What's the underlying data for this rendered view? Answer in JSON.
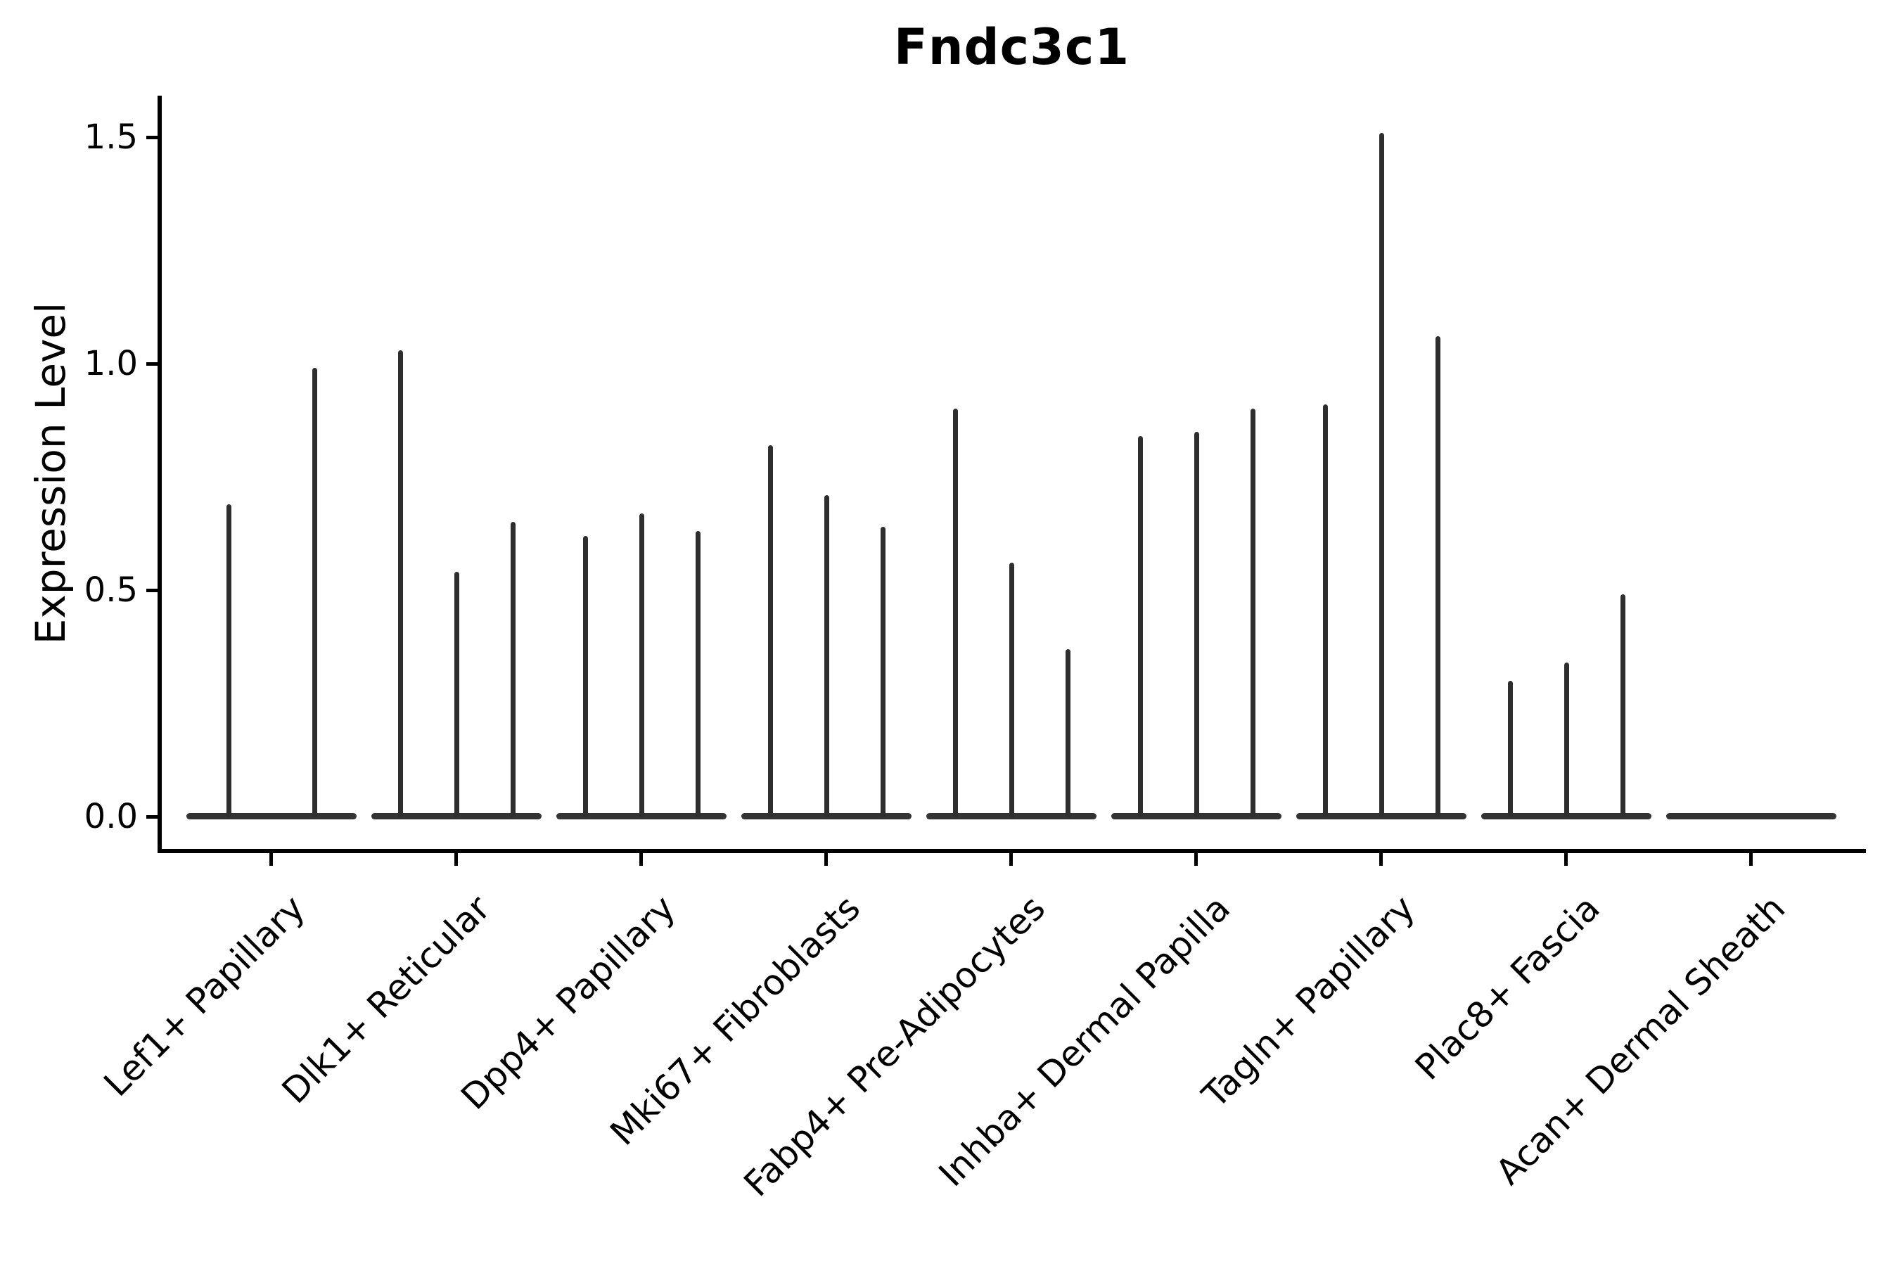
{
  "chart_data": {
    "type": "violin",
    "title": "Fndc3c1",
    "ylabel": "Expression Level",
    "xlabel": "",
    "grid": false,
    "legend": "none",
    "ylim": [
      -0.08,
      1.59
    ],
    "ytick_values": [
      0.0,
      0.5,
      1.0,
      1.5
    ],
    "ytick_labels": [
      "0.0",
      "0.5",
      "1.0",
      "1.5"
    ],
    "categories": [
      "Lef1+ Papillary",
      "Dlk1+ Reticular",
      "Dpp4+ Papillary",
      "Mki67+ Fibroblasts",
      "Fabp4+ Pre-Adipocytes",
      "Inhba+ Dermal Papilla",
      "Tagln+ Papillary",
      "Plac8+ Fascia",
      "Acan+ Dermal Sheath"
    ],
    "description": "Each category shows narrow violins: a wide flat base at expression 0 with a thin spike rising to the maximum expression value per violin.",
    "groups": [
      {
        "category": "Lef1+ Papillary",
        "violin_maxima": [
          0.69,
          0.99
        ]
      },
      {
        "category": "Dlk1+ Reticular",
        "violin_maxima": [
          1.03,
          0.54,
          0.65
        ]
      },
      {
        "category": "Dpp4+ Papillary",
        "violin_maxima": [
          0.62,
          0.67,
          0.63
        ]
      },
      {
        "category": "Mki67+ Fibroblasts",
        "violin_maxima": [
          0.82,
          0.71,
          0.64
        ]
      },
      {
        "category": "Fabp4+ Pre-Adipocytes",
        "violin_maxima": [
          0.9,
          0.56,
          0.37
        ]
      },
      {
        "category": "Inhba+ Dermal Papilla",
        "violin_maxima": [
          0.84,
          0.85,
          0.9
        ]
      },
      {
        "category": "Tagln+ Papillary",
        "violin_maxima": [
          0.91,
          1.51,
          1.06
        ]
      },
      {
        "category": "Plac8+ Fascia",
        "violin_maxima": [
          0.3,
          0.34,
          0.49
        ]
      },
      {
        "category": "Acan+ Dermal Sheath",
        "violin_maxima": [
          0.0,
          0.0,
          0.0
        ]
      }
    ],
    "colors": {
      "spine": "#000000",
      "violin_line": "#2e2e2e",
      "violin_base": "#333333",
      "text": "#000000",
      "background": "#ffffff"
    }
  }
}
